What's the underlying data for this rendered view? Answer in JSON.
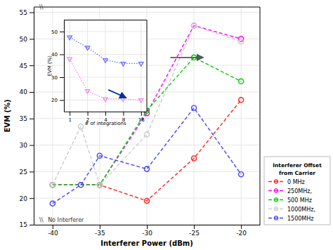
{
  "chart_data": [
    {
      "type": "line",
      "xlabel": "Interferer Power (dBm)",
      "ylabel": "EVM (%)",
      "xlim": [
        -42,
        -18
      ],
      "ylim": [
        15,
        56
      ],
      "xticks": [
        -40,
        -35,
        -30,
        -25,
        -20
      ],
      "yticks": [
        15,
        20,
        25,
        30,
        35,
        40,
        45,
        50,
        55
      ],
      "grid": true,
      "legend": "lower right",
      "legend_title": [
        "Interferer Offset",
        "from Carrier"
      ],
      "marker": "circle",
      "line_style": "dashed",
      "series": [
        {
          "name": "0 MHz",
          "color": "#ff2020",
          "x": [
            -40,
            -35,
            -30,
            -25,
            -20
          ],
          "values": [
            22.5,
            22.5,
            19.5,
            27.5,
            38.5
          ]
        },
        {
          "name": "250MHz,",
          "color": "#ff00ff",
          "x": [
            -40,
            -35,
            -30,
            -25,
            -20
          ],
          "values": [
            22.5,
            22.5,
            36.0,
            52.5,
            50.0
          ]
        },
        {
          "name": "500 MHz",
          "color": "#00cc00",
          "x": [
            -40,
            -35,
            -30,
            -25,
            -20
          ],
          "values": [
            22.5,
            22.5,
            36.5,
            46.5,
            42.0
          ]
        },
        {
          "name": "1000MHz,",
          "color": "#cccccc",
          "x": [
            -40,
            -37,
            -35,
            -30,
            -25,
            -20
          ],
          "values": [
            22.5,
            33.5,
            22.5,
            32.0,
            52.5,
            49.5
          ]
        },
        {
          "name": "1500MHz",
          "color": "#4444ff",
          "x": [
            -40,
            -37,
            -35,
            -30,
            -25,
            -20
          ],
          "values": [
            19.0,
            22.5,
            28.0,
            25.5,
            37.0,
            24.5
          ]
        }
      ],
      "annotations": [
        {
          "text": "\\\\",
          "x": -41.2,
          "y": 55.3
        },
        {
          "text": "\\\\",
          "x": -41.2,
          "y": 15.3
        },
        {
          "text": "No Interferer",
          "x": -40.5,
          "y": 15.3
        },
        {
          "x": -27.5,
          "y": 46.5,
          "x_to": -24.0,
          "y_to": 46.5,
          "color": "#555566"
        }
      ]
    },
    {
      "type": "line",
      "log": "x",
      "xlabel": "# of integrations",
      "ylabel": "EVM (%)",
      "xlim": [
        0.8,
        20
      ],
      "ylim": [
        15,
        55
      ],
      "xticks": [
        1,
        2,
        4,
        8,
        16
      ],
      "yticks": [
        20,
        30,
        40,
        50
      ],
      "grid": true,
      "marker": "triangle-down",
      "line_style": "dotted",
      "x": [
        1,
        2,
        4,
        8,
        16
      ],
      "series": [
        {
          "color": "#6666ff",
          "values": [
            47.5,
            43.0,
            37.5,
            36.0,
            36.0
          ]
        },
        {
          "color": "#ee88ee",
          "values": [
            38.0,
            24.0,
            20.5,
            20.5,
            20.0
          ]
        }
      ],
      "annotations": [
        {
          "x": 4.5,
          "y": 24.5,
          "x_to": 9,
          "y_to": 21.0,
          "color": "#003399"
        }
      ]
    }
  ]
}
